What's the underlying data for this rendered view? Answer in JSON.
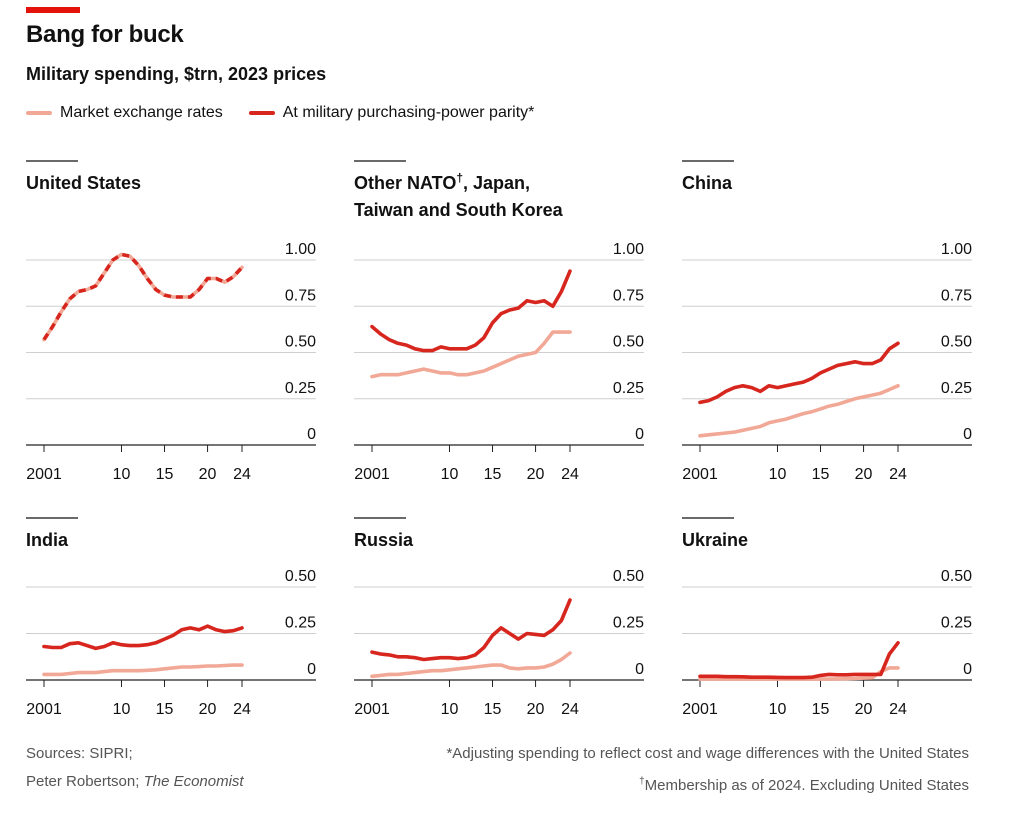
{
  "header": {
    "title": "Bang for buck",
    "subtitle": "Military spending, $trn, 2023 prices"
  },
  "legend": [
    {
      "label": "Market exchange rates",
      "color": "#f2a896"
    },
    {
      "label": "At military purchasing-power parity*",
      "color": "#d7261e"
    }
  ],
  "colors": {
    "market": "#f2a896",
    "ppp": "#d7261e",
    "accent": "#e3120b"
  },
  "footer": {
    "sources_line1": "Sources: SIPRI;",
    "sources_line2_a": "Peter Robertson; ",
    "sources_line2_b": "The Economist",
    "note1": "*Adjusting spending to reflect cost and wage differences with the United States",
    "note2_mark": "†",
    "note2": "Membership as of 2024. Excluding United States"
  },
  "chart_data": [
    {
      "type": "line",
      "title": "United States",
      "xlabels": [
        "2001",
        "10",
        "15",
        "20",
        "24"
      ],
      "yticks": [
        "1.00",
        "0.75",
        "0.50",
        "0.25",
        "0"
      ],
      "ylim": [
        0,
        1.0
      ],
      "grid": true,
      "x": [
        2001,
        2002,
        2003,
        2004,
        2005,
        2006,
        2007,
        2008,
        2009,
        2010,
        2011,
        2012,
        2013,
        2014,
        2015,
        2016,
        2017,
        2018,
        2019,
        2020,
        2021,
        2022,
        2023,
        2024
      ],
      "series": [
        {
          "name": "Market exchange rates",
          "values": [
            0.57,
            0.64,
            0.72,
            0.79,
            0.83,
            0.84,
            0.86,
            0.93,
            1.0,
            1.03,
            1.02,
            0.97,
            0.9,
            0.84,
            0.81,
            0.8,
            0.8,
            0.8,
            0.84,
            0.9,
            0.9,
            0.88,
            0.91,
            0.96
          ]
        },
        {
          "name": "At military purchasing-power parity*",
          "values": [
            0.57,
            0.64,
            0.72,
            0.79,
            0.83,
            0.84,
            0.86,
            0.93,
            1.0,
            1.03,
            1.02,
            0.97,
            0.9,
            0.84,
            0.81,
            0.8,
            0.8,
            0.8,
            0.84,
            0.9,
            0.9,
            0.88,
            0.91,
            0.96
          ]
        }
      ]
    },
    {
      "type": "line",
      "title": "Other NATO",
      "title_mark": "†",
      "title_rest": ", Japan,",
      "title_line2": "Taiwan and South Korea",
      "xlabels": [
        "2001",
        "10",
        "15",
        "20",
        "24"
      ],
      "yticks": [
        "1.00",
        "0.75",
        "0.50",
        "0.25",
        "0"
      ],
      "ylim": [
        0,
        1.0
      ],
      "grid": true,
      "x": [
        2001,
        2002,
        2003,
        2004,
        2005,
        2006,
        2007,
        2008,
        2009,
        2010,
        2011,
        2012,
        2013,
        2014,
        2015,
        2016,
        2017,
        2018,
        2019,
        2020,
        2021,
        2022,
        2023,
        2024
      ],
      "series": [
        {
          "name": "Market exchange rates",
          "values": [
            0.37,
            0.38,
            0.38,
            0.38,
            0.39,
            0.4,
            0.41,
            0.4,
            0.39,
            0.39,
            0.38,
            0.38,
            0.39,
            0.4,
            0.42,
            0.44,
            0.46,
            0.48,
            0.49,
            0.5,
            0.55,
            0.61,
            0.61,
            0.61
          ]
        },
        {
          "name": "At military purchasing-power parity*",
          "values": [
            0.64,
            0.6,
            0.57,
            0.55,
            0.54,
            0.52,
            0.51,
            0.51,
            0.53,
            0.52,
            0.52,
            0.52,
            0.54,
            0.58,
            0.66,
            0.71,
            0.73,
            0.74,
            0.78,
            0.77,
            0.78,
            0.75,
            0.83,
            0.94
          ]
        }
      ]
    },
    {
      "type": "line",
      "title": "China",
      "xlabels": [
        "2001",
        "10",
        "15",
        "20",
        "24"
      ],
      "yticks": [
        "1.00",
        "0.75",
        "0.50",
        "0.25",
        "0"
      ],
      "ylim": [
        0,
        1.0
      ],
      "grid": true,
      "x": [
        2001,
        2002,
        2003,
        2004,
        2005,
        2006,
        2007,
        2008,
        2009,
        2010,
        2011,
        2012,
        2013,
        2014,
        2015,
        2016,
        2017,
        2018,
        2019,
        2020,
        2021,
        2022,
        2023,
        2024
      ],
      "series": [
        {
          "name": "Market exchange rates",
          "values": [
            0.05,
            0.055,
            0.06,
            0.065,
            0.07,
            0.08,
            0.09,
            0.1,
            0.12,
            0.13,
            0.14,
            0.155,
            0.17,
            0.18,
            0.195,
            0.21,
            0.22,
            0.235,
            0.25,
            0.26,
            0.27,
            0.28,
            0.3,
            0.32
          ]
        },
        {
          "name": "At military purchasing-power parity*",
          "values": [
            0.23,
            0.24,
            0.26,
            0.29,
            0.31,
            0.32,
            0.31,
            0.29,
            0.32,
            0.31,
            0.32,
            0.33,
            0.34,
            0.36,
            0.39,
            0.41,
            0.43,
            0.44,
            0.45,
            0.44,
            0.44,
            0.46,
            0.52,
            0.55
          ]
        }
      ]
    },
    {
      "type": "line",
      "title": "India",
      "xlabels": [
        "2001",
        "10",
        "15",
        "20",
        "24"
      ],
      "yticks": [
        "0.50",
        "0.25",
        "0"
      ],
      "ylim": [
        0,
        0.5
      ],
      "grid": true,
      "x": [
        2001,
        2002,
        2003,
        2004,
        2005,
        2006,
        2007,
        2008,
        2009,
        2010,
        2011,
        2012,
        2013,
        2014,
        2015,
        2016,
        2017,
        2018,
        2019,
        2020,
        2021,
        2022,
        2023,
        2024
      ],
      "series": [
        {
          "name": "Market exchange rates",
          "values": [
            0.03,
            0.03,
            0.03,
            0.035,
            0.04,
            0.04,
            0.04,
            0.045,
            0.05,
            0.05,
            0.05,
            0.05,
            0.052,
            0.055,
            0.06,
            0.065,
            0.07,
            0.07,
            0.072,
            0.075,
            0.075,
            0.078,
            0.08,
            0.08
          ]
        },
        {
          "name": "At military purchasing-power parity*",
          "values": [
            0.18,
            0.175,
            0.175,
            0.195,
            0.2,
            0.185,
            0.17,
            0.18,
            0.2,
            0.19,
            0.185,
            0.185,
            0.19,
            0.2,
            0.22,
            0.24,
            0.27,
            0.28,
            0.27,
            0.29,
            0.27,
            0.26,
            0.265,
            0.28
          ]
        }
      ]
    },
    {
      "type": "line",
      "title": "Russia",
      "xlabels": [
        "2001",
        "10",
        "15",
        "20",
        "24"
      ],
      "yticks": [
        "0.50",
        "0.25",
        "0"
      ],
      "ylim": [
        0,
        0.5
      ],
      "grid": true,
      "x": [
        2001,
        2002,
        2003,
        2004,
        2005,
        2006,
        2007,
        2008,
        2009,
        2010,
        2011,
        2012,
        2013,
        2014,
        2015,
        2016,
        2017,
        2018,
        2019,
        2020,
        2021,
        2022,
        2023,
        2024
      ],
      "series": [
        {
          "name": "Market exchange rates",
          "values": [
            0.02,
            0.025,
            0.03,
            0.03,
            0.035,
            0.04,
            0.045,
            0.05,
            0.05,
            0.055,
            0.06,
            0.065,
            0.07,
            0.075,
            0.08,
            0.08,
            0.065,
            0.06,
            0.065,
            0.065,
            0.07,
            0.085,
            0.11,
            0.145
          ]
        },
        {
          "name": "At military purchasing-power parity*",
          "values": [
            0.15,
            0.14,
            0.135,
            0.125,
            0.125,
            0.12,
            0.11,
            0.115,
            0.12,
            0.12,
            0.115,
            0.12,
            0.135,
            0.175,
            0.24,
            0.28,
            0.25,
            0.22,
            0.25,
            0.245,
            0.24,
            0.27,
            0.32,
            0.43
          ]
        }
      ]
    },
    {
      "type": "line",
      "title": "Ukraine",
      "xlabels": [
        "2001",
        "10",
        "15",
        "20",
        "24"
      ],
      "yticks": [
        "0.50",
        "0.25",
        "0"
      ],
      "ylim": [
        0,
        0.5
      ],
      "grid": true,
      "x": [
        2001,
        2002,
        2003,
        2004,
        2005,
        2006,
        2007,
        2008,
        2009,
        2010,
        2011,
        2012,
        2013,
        2014,
        2015,
        2016,
        2017,
        2018,
        2019,
        2020,
        2021,
        2022,
        2023,
        2024
      ],
      "series": [
        {
          "name": "Market exchange rates",
          "values": [
            0.005,
            0.005,
            0.005,
            0.005,
            0.005,
            0.005,
            0.005,
            0.005,
            0.005,
            0.005,
            0.005,
            0.005,
            0.005,
            0.005,
            0.005,
            0.005,
            0.006,
            0.007,
            0.008,
            0.01,
            0.012,
            0.045,
            0.065,
            0.065
          ]
        },
        {
          "name": "At military purchasing-power parity*",
          "values": [
            0.02,
            0.02,
            0.02,
            0.018,
            0.018,
            0.017,
            0.015,
            0.015,
            0.015,
            0.014,
            0.013,
            0.013,
            0.013,
            0.015,
            0.025,
            0.03,
            0.028,
            0.028,
            0.03,
            0.03,
            0.03,
            0.03,
            0.14,
            0.2
          ]
        }
      ]
    }
  ]
}
